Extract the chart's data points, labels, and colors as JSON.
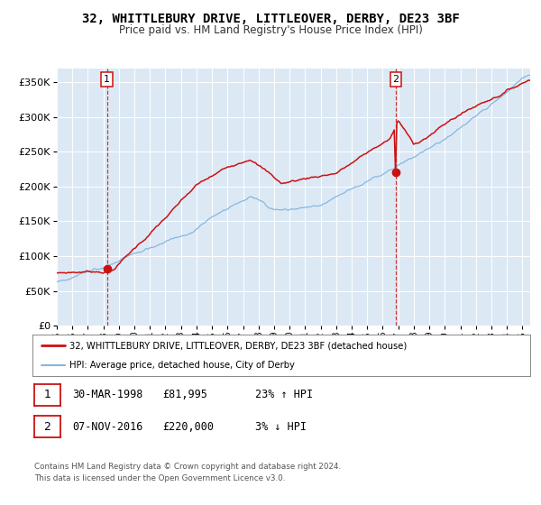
{
  "title": "32, WHITTLEBURY DRIVE, LITTLEOVER, DERBY, DE23 3BF",
  "subtitle": "Price paid vs. HM Land Registry's House Price Index (HPI)",
  "red_label": "32, WHITTLEBURY DRIVE, LITTLEOVER, DERBY, DE23 3BF (detached house)",
  "blue_label": "HPI: Average price, detached house, City of Derby",
  "marker1_date": "30-MAR-1998",
  "marker1_price": 81995,
  "marker1_hpi": "23% ↑ HPI",
  "marker2_date": "07-NOV-2016",
  "marker2_price": 220000,
  "marker2_hpi": "3% ↓ HPI",
  "footer1": "Contains HM Land Registry data © Crown copyright and database right 2024.",
  "footer2": "This data is licensed under the Open Government Licence v3.0.",
  "ylim": [
    0,
    370000
  ],
  "xlim_start": 1995.0,
  "xlim_end": 2025.5,
  "background_color": "#dce9f5",
  "red_color": "#cc1111",
  "blue_color": "#85b8e0"
}
